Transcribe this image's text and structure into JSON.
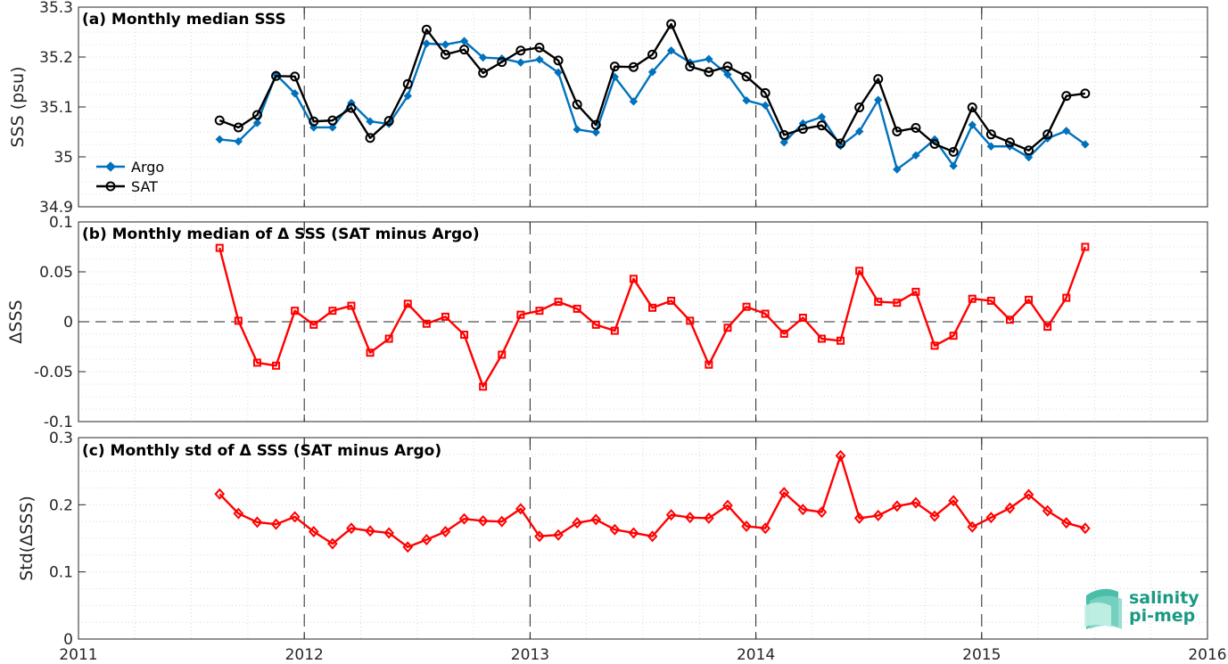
{
  "chart_data": [
    {
      "type": "line",
      "title": "(a) Monthly median SSS",
      "ylabel": "SSS (psu)",
      "ylim": [
        34.9,
        35.3
      ],
      "yticks": [
        "34.9",
        "35",
        "35.1",
        "35.2",
        "35.3"
      ],
      "xlim": [
        2011,
        2016
      ],
      "xticks": [
        "2011",
        "2012",
        "2013",
        "2014",
        "2015",
        "2016"
      ],
      "grid": true,
      "legend_placement": "bottom-left",
      "x_start": 2011.625,
      "x_step": 0.0833333,
      "series": [
        {
          "name": "Argo",
          "color": "#0072BD",
          "marker": "diamond-filled",
          "values": [
            35.035,
            35.031,
            35.068,
            35.165,
            35.127,
            35.059,
            35.059,
            35.108,
            35.071,
            35.066,
            35.122,
            35.227,
            35.225,
            35.232,
            35.199,
            35.197,
            35.189,
            35.195,
            35.169,
            35.055,
            35.049,
            35.16,
            35.111,
            35.17,
            35.213,
            35.189,
            35.196,
            35.165,
            35.113,
            35.103,
            35.029,
            35.067,
            35.08,
            35.022,
            35.051,
            35.114,
            34.975,
            35.003,
            35.035,
            34.982,
            35.064,
            35.021,
            35.021,
            34.999,
            35.037,
            35.052,
            35.025
          ]
        },
        {
          "name": "SAT",
          "color": "#000000",
          "marker": "circle-open",
          "values": [
            35.073,
            35.059,
            35.084,
            35.162,
            35.161,
            35.071,
            35.073,
            35.098,
            35.038,
            35.072,
            35.146,
            35.255,
            35.205,
            35.215,
            35.168,
            35.19,
            35.213,
            35.219,
            35.193,
            35.105,
            35.064,
            35.181,
            35.18,
            35.205,
            35.266,
            35.181,
            35.17,
            35.181,
            35.161,
            35.128,
            35.044,
            35.056,
            35.063,
            35.027,
            35.099,
            35.156,
            35.051,
            35.058,
            35.026,
            35.01,
            35.099,
            35.045,
            35.029,
            35.013,
            35.045,
            35.122,
            35.127
          ]
        }
      ]
    },
    {
      "type": "line",
      "title": "(b) Monthly median of Δ SSS (SAT minus Argo)",
      "ylabel": "ΔSSS",
      "ylim": [
        -0.1,
        0.1
      ],
      "yticks": [
        "-0.1",
        "-0.05",
        "0",
        "0.05",
        "0.1"
      ],
      "xlim": [
        2011,
        2016
      ],
      "grid": true,
      "zero_line": true,
      "x_start": 2011.625,
      "x_step": 0.0833333,
      "series": [
        {
          "color": "#FF0000",
          "marker": "square-open",
          "values": [
            0.074,
            0.001,
            -0.041,
            -0.044,
            0.011,
            -0.003,
            0.011,
            0.016,
            -0.031,
            -0.017,
            0.018,
            -0.002,
            0.005,
            -0.013,
            -0.065,
            -0.033,
            0.007,
            0.011,
            0.02,
            0.013,
            -0.003,
            -0.009,
            0.043,
            0.014,
            0.021,
            0.001,
            -0.043,
            -0.006,
            0.015,
            0.008,
            -0.012,
            0.004,
            -0.017,
            -0.019,
            0.051,
            0.02,
            0.019,
            0.03,
            -0.024,
            -0.014,
            0.023,
            0.021,
            0.002,
            0.022,
            -0.005,
            0.024,
            0.075
          ]
        }
      ]
    },
    {
      "type": "line",
      "title": "(c) Monthly std of Δ SSS (SAT minus Argo)",
      "ylabel": "Std(ΔSSS)",
      "ylim": [
        0,
        0.3
      ],
      "yticks": [
        "0",
        "0.1",
        "0.2",
        "0.3"
      ],
      "xlim": [
        2011,
        2016
      ],
      "grid": true,
      "x_start": 2011.625,
      "x_step": 0.0833333,
      "series": [
        {
          "color": "#FF0000",
          "marker": "diamond-open",
          "values": [
            0.216,
            0.187,
            0.174,
            0.171,
            0.182,
            0.16,
            0.142,
            0.165,
            0.161,
            0.158,
            0.137,
            0.148,
            0.16,
            0.179,
            0.176,
            0.175,
            0.194,
            0.153,
            0.155,
            0.173,
            0.178,
            0.163,
            0.158,
            0.153,
            0.185,
            0.181,
            0.18,
            0.199,
            0.168,
            0.165,
            0.218,
            0.193,
            0.189,
            0.273,
            0.18,
            0.184,
            0.198,
            0.203,
            0.183,
            0.206,
            0.167,
            0.181,
            0.195,
            0.215,
            0.191,
            0.173,
            0.165
          ]
        }
      ]
    }
  ],
  "logo": {
    "line1": "salinity",
    "line2": "pi-mep"
  }
}
